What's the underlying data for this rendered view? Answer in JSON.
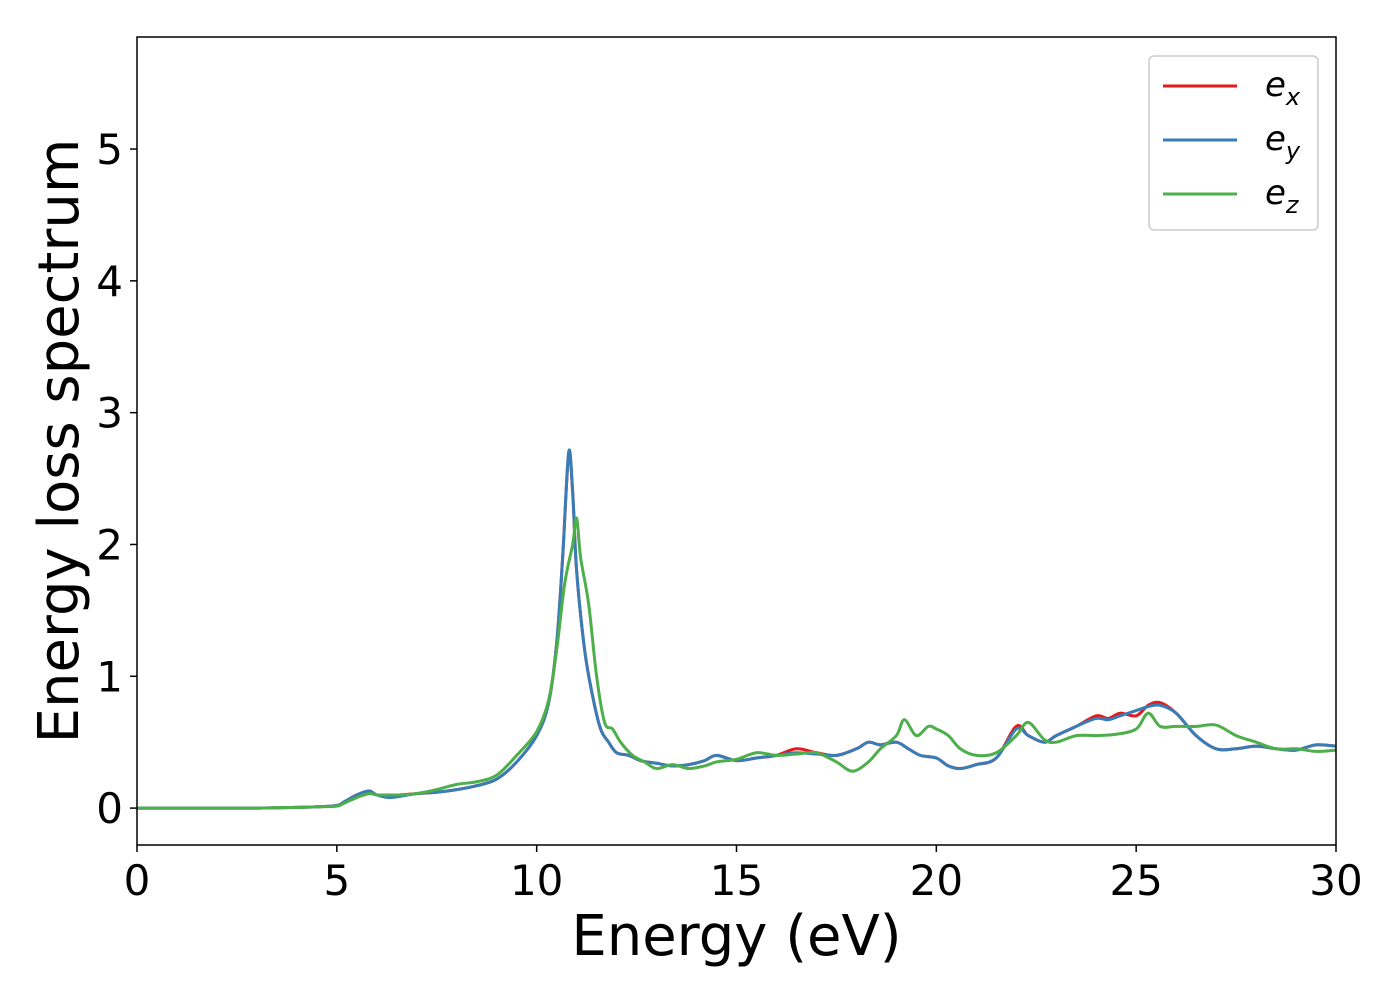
{
  "chart_data": {
    "type": "line",
    "title": "",
    "xlabel": "Energy (eV)",
    "ylabel": "Energy loss spectrum",
    "xlim": [
      0,
      30
    ],
    "ylim": [
      -0.28,
      5.85
    ],
    "xticks": [
      0,
      5,
      10,
      15,
      20,
      25,
      30
    ],
    "xtick_labels": [
      "0",
      "5",
      "10",
      "15",
      "20",
      "25",
      "30"
    ],
    "yticks": [
      0,
      1,
      2,
      3,
      4,
      5
    ],
    "ytick_labels": [
      "0",
      "1",
      "2",
      "3",
      "4",
      "5"
    ],
    "grid": false,
    "legend": "top-right",
    "series": [
      {
        "name": "e_x",
        "label_main": "e",
        "label_sub": "x",
        "color": "#e41a1c",
        "x": [
          0,
          1,
          2,
          3,
          4,
          4.5,
          5,
          5.2,
          5.5,
          5.8,
          6.0,
          6.3,
          6.6,
          7.0,
          7.5,
          8.0,
          8.5,
          9.0,
          9.5,
          10.0,
          10.3,
          10.5,
          10.65,
          10.8,
          10.9,
          11.0,
          11.2,
          11.4,
          11.6,
          11.8,
          12.0,
          12.3,
          12.6,
          13.0,
          13.4,
          13.8,
          14.2,
          14.5,
          15.0,
          15.5,
          16.0,
          16.5,
          17.0,
          17.5,
          18.0,
          18.3,
          18.6,
          19.0,
          19.3,
          19.6,
          20.0,
          20.3,
          20.6,
          21.0,
          21.5,
          22.0,
          22.3,
          22.7,
          23.0,
          23.5,
          24.0,
          24.3,
          24.6,
          25.0,
          25.3,
          25.6,
          26.0,
          26.5,
          27.0,
          27.5,
          28.0,
          28.5,
          29.0,
          29.5,
          30.0
        ],
        "values": [
          0,
          0,
          0,
          0,
          0.005,
          0.01,
          0.02,
          0.05,
          0.1,
          0.13,
          0.1,
          0.09,
          0.1,
          0.11,
          0.12,
          0.14,
          0.17,
          0.22,
          0.35,
          0.55,
          0.8,
          1.25,
          1.9,
          2.68,
          2.4,
          1.8,
          1.2,
          0.85,
          0.6,
          0.5,
          0.42,
          0.4,
          0.36,
          0.34,
          0.32,
          0.33,
          0.36,
          0.4,
          0.36,
          0.38,
          0.4,
          0.45,
          0.42,
          0.4,
          0.45,
          0.5,
          0.48,
          0.5,
          0.45,
          0.4,
          0.38,
          0.32,
          0.3,
          0.33,
          0.38,
          0.62,
          0.55,
          0.5,
          0.55,
          0.62,
          0.7,
          0.68,
          0.72,
          0.7,
          0.78,
          0.8,
          0.72,
          0.55,
          0.45,
          0.45,
          0.47,
          0.45,
          0.44,
          0.48,
          0.47
        ]
      },
      {
        "name": "e_y",
        "label_main": "e",
        "label_sub": "y",
        "color": "#377eb8",
        "x": [
          0,
          1,
          2,
          3,
          4,
          4.5,
          5,
          5.2,
          5.5,
          5.8,
          6.0,
          6.3,
          6.6,
          7.0,
          7.5,
          8.0,
          8.5,
          9.0,
          9.5,
          10.0,
          10.3,
          10.5,
          10.65,
          10.8,
          10.9,
          11.0,
          11.2,
          11.4,
          11.6,
          11.8,
          12.0,
          12.3,
          12.6,
          13.0,
          13.4,
          13.8,
          14.2,
          14.5,
          15.0,
          15.5,
          16.0,
          16.5,
          17.0,
          17.5,
          18.0,
          18.3,
          18.6,
          19.0,
          19.3,
          19.6,
          20.0,
          20.3,
          20.6,
          21.0,
          21.5,
          22.0,
          22.3,
          22.7,
          23.0,
          23.5,
          24.0,
          24.3,
          24.6,
          25.0,
          25.3,
          25.6,
          26.0,
          26.5,
          27.0,
          27.5,
          28.0,
          28.5,
          29.0,
          29.5,
          30.0
        ],
        "values": [
          0,
          0,
          0,
          0,
          0.005,
          0.01,
          0.02,
          0.05,
          0.1,
          0.13,
          0.1,
          0.08,
          0.09,
          0.11,
          0.12,
          0.14,
          0.17,
          0.22,
          0.35,
          0.55,
          0.8,
          1.25,
          1.9,
          2.7,
          2.4,
          1.8,
          1.2,
          0.85,
          0.6,
          0.5,
          0.42,
          0.4,
          0.36,
          0.34,
          0.32,
          0.33,
          0.36,
          0.4,
          0.36,
          0.38,
          0.4,
          0.42,
          0.41,
          0.4,
          0.45,
          0.5,
          0.48,
          0.5,
          0.45,
          0.4,
          0.38,
          0.32,
          0.3,
          0.33,
          0.38,
          0.6,
          0.55,
          0.5,
          0.55,
          0.62,
          0.68,
          0.67,
          0.7,
          0.74,
          0.77,
          0.78,
          0.72,
          0.55,
          0.45,
          0.45,
          0.47,
          0.45,
          0.44,
          0.48,
          0.47
        ]
      },
      {
        "name": "e_z",
        "label_main": "e",
        "label_sub": "z",
        "color": "#4daf4a",
        "x": [
          0,
          1,
          2,
          3,
          4,
          4.5,
          5,
          5.2,
          5.5,
          5.8,
          6.0,
          6.3,
          6.6,
          7.0,
          7.5,
          8.0,
          8.5,
          9.0,
          9.5,
          10.0,
          10.3,
          10.5,
          10.7,
          10.9,
          11.0,
          11.1,
          11.3,
          11.5,
          11.7,
          11.9,
          12.1,
          12.4,
          12.7,
          13.0,
          13.4,
          13.8,
          14.2,
          14.5,
          15.0,
          15.5,
          16.0,
          16.5,
          17.0,
          17.5,
          17.9,
          18.3,
          18.6,
          19.0,
          19.2,
          19.5,
          19.8,
          20.0,
          20.3,
          20.6,
          21.0,
          21.5,
          22.0,
          22.3,
          22.7,
          23.0,
          23.5,
          24.0,
          24.5,
          25.0,
          25.3,
          25.6,
          26.0,
          26.5,
          27.0,
          27.5,
          28.0,
          28.5,
          29.0,
          29.5,
          30.0
        ],
        "values": [
          0,
          0,
          0,
          0,
          0.005,
          0.01,
          0.015,
          0.04,
          0.08,
          0.11,
          0.1,
          0.1,
          0.1,
          0.11,
          0.14,
          0.18,
          0.2,
          0.25,
          0.4,
          0.58,
          0.82,
          1.2,
          1.7,
          2.0,
          2.2,
          1.9,
          1.55,
          1.0,
          0.65,
          0.6,
          0.5,
          0.4,
          0.35,
          0.3,
          0.33,
          0.3,
          0.32,
          0.35,
          0.37,
          0.42,
          0.4,
          0.41,
          0.42,
          0.35,
          0.28,
          0.35,
          0.45,
          0.55,
          0.67,
          0.55,
          0.62,
          0.6,
          0.55,
          0.45,
          0.4,
          0.42,
          0.55,
          0.65,
          0.52,
          0.5,
          0.55,
          0.55,
          0.56,
          0.6,
          0.72,
          0.62,
          0.62,
          0.62,
          0.63,
          0.55,
          0.5,
          0.45,
          0.45,
          0.43,
          0.44
        ]
      }
    ]
  }
}
